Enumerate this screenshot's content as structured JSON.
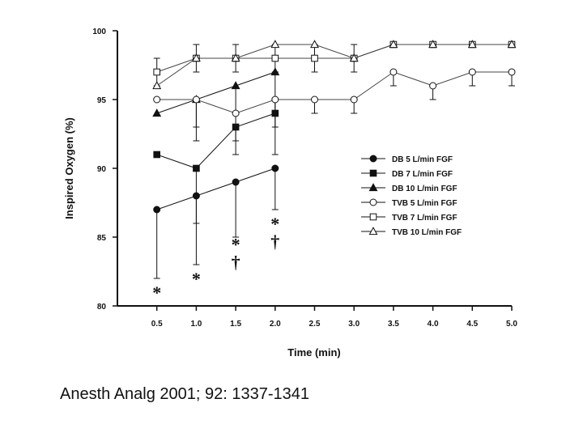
{
  "chart_data": {
    "type": "line",
    "xlabel": "Time (min)",
    "ylabel": "Inspired Oxygen (%)",
    "xlim": [
      0,
      5.0
    ],
    "ylim": [
      80,
      100
    ],
    "x_ticks": [
      "0.5",
      "1.0",
      "1.5",
      "2.0",
      "2.5",
      "3.0",
      "3.5",
      "4.0",
      "4.5",
      "5.0"
    ],
    "y_ticks": [
      "80",
      "85",
      "90",
      "95",
      "100"
    ],
    "grid": false,
    "legend_position": "right",
    "series": [
      {
        "name": "DB 5 L/min FGF",
        "marker": "circle",
        "filled": true,
        "x": [
          0.5,
          1.0,
          1.5,
          2.0
        ],
        "y": [
          87,
          88,
          89,
          90
        ],
        "err_low": [
          82,
          83,
          85,
          87
        ],
        "err_high": [
          87,
          88,
          89,
          90
        ]
      },
      {
        "name": "DB 7 L/min FGF",
        "marker": "square",
        "filled": true,
        "x": [
          0.5,
          1.0,
          1.5,
          2.0
        ],
        "y": [
          91,
          90,
          93,
          94
        ],
        "err_low": [
          91,
          86,
          91,
          91
        ],
        "err_high": [
          91,
          90,
          93,
          94
        ]
      },
      {
        "name": "DB 10 L/min FGF",
        "marker": "triangle",
        "filled": true,
        "x": [
          0.5,
          1.0,
          1.5,
          2.0
        ],
        "y": [
          94,
          95,
          96,
          97
        ],
        "err_low": [
          94,
          92,
          92,
          93
        ],
        "err_high": [
          94,
          95,
          96,
          97
        ]
      },
      {
        "name": "TVB 5 L/min FGF",
        "marker": "circle",
        "filled": false,
        "x": [
          0.5,
          1.0,
          1.5,
          2.0,
          2.5,
          3.0,
          3.5,
          4.0,
          4.5,
          5.0
        ],
        "y": [
          95,
          95,
          94,
          95,
          95,
          95,
          97,
          96,
          97,
          97
        ],
        "err_low": [
          95,
          93,
          94,
          94,
          94,
          94,
          96,
          95,
          96,
          96
        ],
        "err_high": [
          95,
          95,
          94,
          95,
          95,
          95,
          97,
          96,
          97,
          97
        ]
      },
      {
        "name": "TVB 7 L/min FGF",
        "marker": "square",
        "filled": false,
        "x": [
          0.5,
          1.0,
          1.5,
          2.0,
          2.5,
          3.0,
          3.5,
          4.0,
          4.5,
          5.0
        ],
        "y": [
          97,
          98,
          98,
          98,
          98,
          98,
          99,
          99,
          99,
          99
        ],
        "err_low": [
          96,
          97,
          97,
          97,
          97,
          97,
          99,
          99,
          99,
          99
        ],
        "err_high": [
          98,
          99,
          99,
          99,
          99,
          99,
          99,
          99,
          99,
          99
        ]
      },
      {
        "name": "TVB 10 L/min FGF",
        "marker": "triangle",
        "filled": false,
        "x": [
          0.5,
          1.0,
          1.5,
          2.0,
          2.5,
          3.0,
          3.5,
          4.0,
          4.5,
          5.0
        ],
        "y": [
          96,
          98,
          98,
          99,
          99,
          98,
          99,
          99,
          99,
          99
        ],
        "err_low": [
          96,
          98,
          98,
          99,
          99,
          98,
          99,
          99,
          99,
          99
        ],
        "err_high": [
          96,
          98,
          98,
          99,
          99,
          98,
          99,
          99,
          99,
          99
        ]
      }
    ],
    "annotations": [
      {
        "x": 0.5,
        "y": 81.0,
        "text": "*"
      },
      {
        "x": 1.0,
        "y": 82.0,
        "text": "*"
      },
      {
        "x": 1.5,
        "y": 84.5,
        "text": "*"
      },
      {
        "x": 1.5,
        "y": 83.2,
        "text": "†"
      },
      {
        "x": 2.0,
        "y": 86.0,
        "text": "*"
      },
      {
        "x": 2.0,
        "y": 84.7,
        "text": "†"
      }
    ]
  },
  "citation": "Anesth Analg 2001; 92: 1337-1341"
}
